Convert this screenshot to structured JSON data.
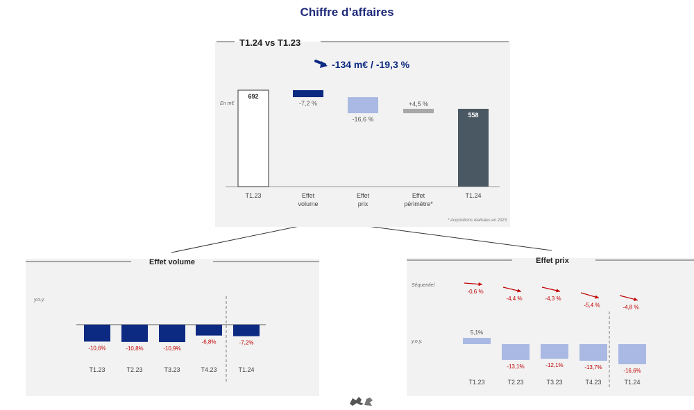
{
  "title": "Chiffre d’affaires",
  "colors": {
    "navy": "#0d2a82",
    "light_blue": "#aab9e3",
    "grey_bar": "#a8a8a8",
    "dark_slate": "#4a5863",
    "red": "#c00000",
    "panel_bg": "#f2f2f2"
  },
  "chart_data": [
    {
      "type": "bar",
      "subtype": "waterfall",
      "title": "T1.24 vs T1.23",
      "headline": "-134 m€ / -19,3 %",
      "headline_icon": "trend-down-arrow-icon",
      "unit_label": "En m€",
      "categories": [
        "T1.23",
        "Effet volume",
        "Effet prix",
        "Effet périmètre*",
        "T1.24"
      ],
      "category_lines": [
        [
          "T1.23"
        ],
        [
          "Effet",
          "volume"
        ],
        [
          "Effet",
          "prix"
        ],
        [
          "Effet",
          "périmètre*"
        ],
        [
          "T1.24"
        ]
      ],
      "values": [
        692,
        -50,
        -115,
        31,
        558
      ],
      "value_labels": [
        "692",
        "-7,2 %",
        "-16,6 %",
        "+4,5 %",
        "558"
      ],
      "footnote": "* Acquisitions réalisées en 2023"
    },
    {
      "type": "bar",
      "title": "Effet volume",
      "ylabel": "y.o.y.",
      "categories": [
        "T1.23",
        "T2.23",
        "T3.23",
        "T4.23",
        "T1.24"
      ],
      "values": [
        -10.6,
        -10.8,
        -10.9,
        -6.8,
        -7.2
      ],
      "value_labels": [
        "-10,6%",
        "-10,8%",
        "-10,9%",
        "-6,8%",
        "-7,2%"
      ]
    },
    {
      "type": "bar",
      "title": "Effet prix",
      "ylabel": "y.o.y.",
      "categories": [
        "T1.23",
        "T2.23",
        "T3.23",
        "T4.23",
        "T1.24"
      ],
      "values": [
        5.1,
        -13.1,
        -12.1,
        -13.7,
        -16.6
      ],
      "value_labels": [
        "5,1%",
        "-13,1%",
        "-12,1%",
        "-13,7%",
        "-16,6%"
      ],
      "sequential": {
        "label": "Séquentiel",
        "values": [
          -0.6,
          -4.4,
          -4.3,
          -5.4,
          -4.8
        ],
        "value_labels": [
          "-0,6 %",
          "-4,4 %",
          "-4,3 %",
          "-5,4 %",
          "-4,8 %"
        ]
      }
    }
  ]
}
